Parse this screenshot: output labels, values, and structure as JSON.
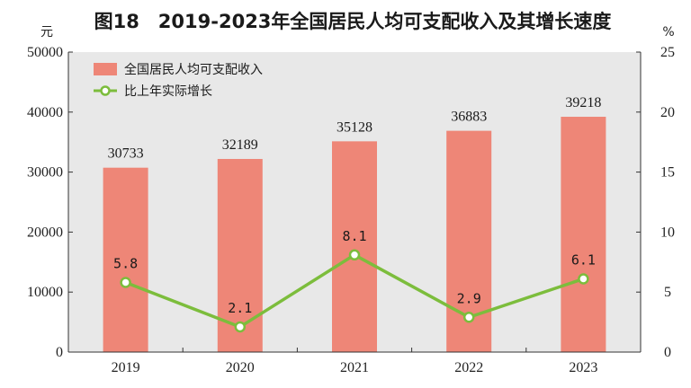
{
  "chart_data": {
    "type": "bar",
    "title": "图18　2019-2023年全国居民人均可支配收入及其增长速度",
    "categories": [
      "2019",
      "2020",
      "2021",
      "2022",
      "2023"
    ],
    "y_left_unit": "元",
    "y_right_unit": "%",
    "y_left_ticks": [
      "0",
      "10000",
      "20000",
      "30000",
      "40000",
      "50000"
    ],
    "y_right_ticks": [
      "0",
      "5",
      "10",
      "15",
      "20",
      "25"
    ],
    "ylim_left": [
      0,
      50000
    ],
    "ylim_right": [
      0,
      25
    ],
    "series": [
      {
        "name": "全国居民人均可支配收入",
        "type": "bar",
        "axis": "left",
        "color": "#ee8677",
        "values": [
          30733,
          32189,
          35128,
          36883,
          39218
        ],
        "labels": [
          "30733",
          "32189",
          "35128",
          "36883",
          "39218"
        ]
      },
      {
        "name": "比上年实际增长",
        "type": "line",
        "axis": "right",
        "color": "#7cbd3c",
        "values": [
          5.8,
          2.1,
          8.1,
          2.9,
          6.1
        ],
        "labels": [
          "5.8",
          "2.1",
          "8.1",
          "2.9",
          "6.1"
        ]
      }
    ],
    "plot_background": "#e8e8e8",
    "grid": false,
    "legend_position": "top-left"
  }
}
